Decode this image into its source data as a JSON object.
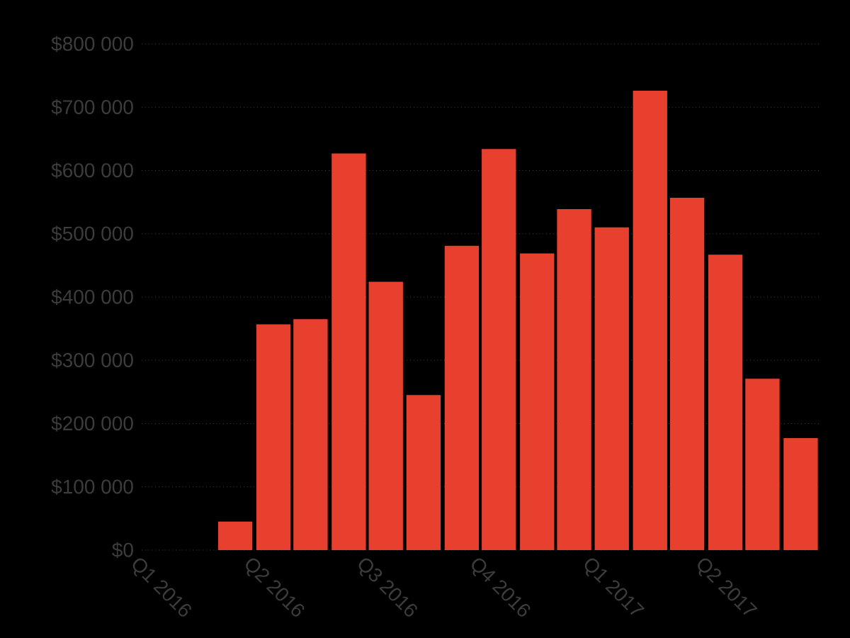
{
  "chart_data": {
    "type": "bar",
    "color": "#e8402f",
    "x": [
      "2016-03-16",
      "2016-04-16",
      "2016-05-16",
      "2016-06-16",
      "2016-07-16",
      "2016-08-16",
      "2016-09-16",
      "2016-10-16",
      "2016-11-16",
      "2016-12-16",
      "2017-01-16",
      "2017-02-15",
      "2017-03-16",
      "2017-04-16",
      "2017-05-16",
      "2017-06-16"
    ],
    "values": [
      45000,
      357000,
      365000,
      627000,
      424000,
      245000,
      481000,
      634000,
      469000,
      539000,
      510000,
      726000,
      557000,
      467000,
      271000,
      177000
    ],
    "xlim": [
      "2016-01-01",
      "2017-07-01"
    ],
    "xticks": [
      {
        "value": "2016-01-01",
        "label": "Q1 2016"
      },
      {
        "value": "2016-04-01",
        "label": "Q2 2016"
      },
      {
        "value": "2016-07-01",
        "label": "Q3 2016"
      },
      {
        "value": "2016-10-01",
        "label": "Q4 2016"
      },
      {
        "value": "2017-01-01",
        "label": "Q1 2017"
      },
      {
        "value": "2017-04-01",
        "label": "Q2 2017"
      }
    ],
    "ylim": [
      0,
      800000
    ],
    "yticks": [
      {
        "value": 0,
        "label": "$0"
      },
      {
        "value": 100000,
        "label": "$100 000"
      },
      {
        "value": 200000,
        "label": "$200 000"
      },
      {
        "value": 300000,
        "label": "$300 000"
      },
      {
        "value": 400000,
        "label": "$400 000"
      },
      {
        "value": 500000,
        "label": "$500 000"
      },
      {
        "value": 600000,
        "label": "$600 000"
      },
      {
        "value": 700000,
        "label": "$700 000"
      },
      {
        "value": 800000,
        "label": "$800 000"
      }
    ],
    "grid": "y"
  }
}
